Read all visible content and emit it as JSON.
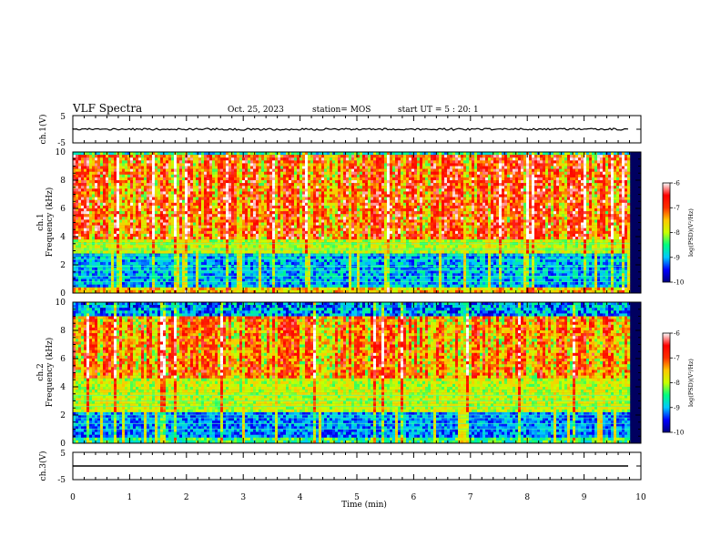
{
  "header": {
    "title": "VLF Spectra",
    "date": "Oct. 25, 2023",
    "station": "station= MOS",
    "start": "start  UT =   5 : 20: 1"
  },
  "chart_data": [
    {
      "type": "line",
      "name": "ch1-waveform",
      "ylabel": "ch.1(V)",
      "ylim": [
        -5,
        5
      ],
      "yticks": [
        "5",
        "-5"
      ],
      "xlim": [
        0,
        10
      ],
      "trace_level": 0
    },
    {
      "type": "heatmap",
      "name": "ch1-spectrogram",
      "ylabel_line1": "ch.1",
      "ylabel_line2": "Frequency (kHz)",
      "ylim": [
        0,
        10
      ],
      "yticks": [
        "0",
        "2",
        "4",
        "6",
        "8",
        "10"
      ],
      "xlim": [
        0,
        10
      ],
      "data_end_min": 9.8
    },
    {
      "type": "heatmap",
      "name": "ch2-spectrogram",
      "ylabel_line1": "ch.2",
      "ylabel_line2": "Frequency (kHz)",
      "ylim": [
        0,
        10
      ],
      "yticks": [
        "0",
        "2",
        "4",
        "6",
        "8",
        "10"
      ],
      "xlim": [
        0,
        10
      ],
      "data_end_min": 9.8
    },
    {
      "type": "line",
      "name": "ch3-waveform",
      "ylabel": "ch.3(V)",
      "ylim": [
        -5,
        5
      ],
      "yticks": [
        "5",
        "-5"
      ],
      "xlim": [
        0,
        10
      ],
      "trace_level": 0
    }
  ],
  "x_axis": {
    "label": "Time (min)",
    "ticks": [
      "0",
      "1",
      "2",
      "3",
      "4",
      "5",
      "6",
      "7",
      "8",
      "9",
      "10"
    ]
  },
  "colorbar": {
    "label": "log(PSD)(V²/Hz)",
    "ticks": [
      "-6",
      "-7",
      "-8",
      "-9",
      "-10"
    ],
    "range": [
      -10,
      -6
    ],
    "colors": [
      "#000080",
      "#0000ff",
      "#00c8ff",
      "#00ff80",
      "#c8ff00",
      "#ffc800",
      "#ff3000",
      "#ff0000",
      "#ffffff"
    ]
  }
}
